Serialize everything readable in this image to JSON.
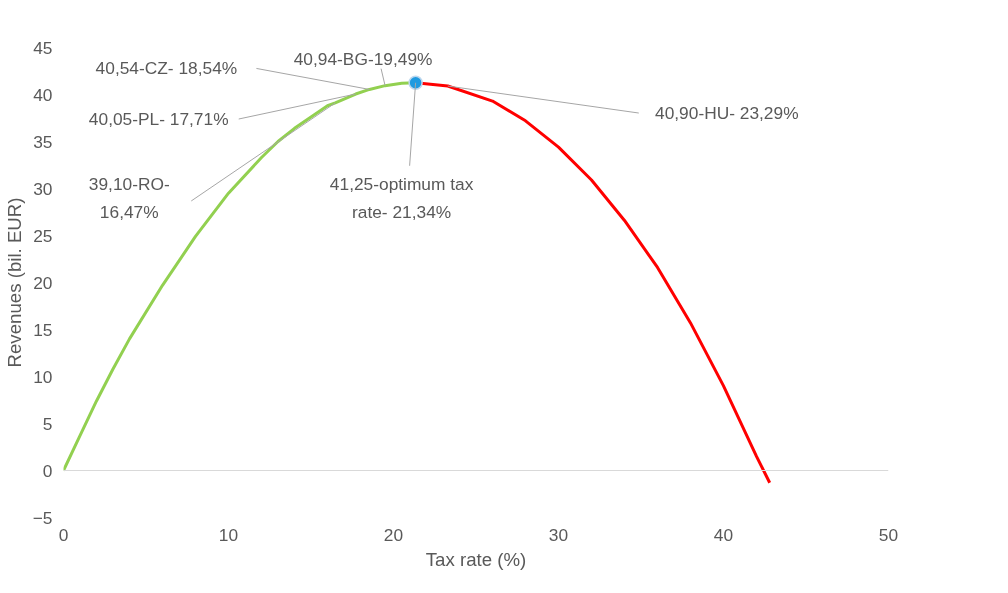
{
  "chart_data": {
    "type": "line",
    "xlabel": "Tax rate (%)",
    "ylabel": "Revenues (bil. EUR)",
    "xlim": [
      0,
      50
    ],
    "ylim": [
      -5,
      45
    ],
    "xticks": [
      0,
      10,
      20,
      30,
      40,
      50
    ],
    "yticks": [
      -5,
      0,
      5,
      10,
      15,
      20,
      25,
      30,
      35,
      40,
      45
    ],
    "grid": false,
    "series": [
      {
        "color": "#92d050",
        "x": [
          0,
          1,
          2,
          3,
          4,
          6,
          8,
          10,
          12,
          13,
          14,
          16,
          16.47,
          17.71,
          18.54,
          19.49,
          20.5,
          21.34
        ],
        "values": [
          0,
          3.7,
          7.4,
          10.8,
          14,
          19.7,
          24.9,
          29.5,
          33.3,
          35,
          36.4,
          38.8,
          39.1,
          40.05,
          40.54,
          40.94,
          41.2,
          41.25
        ]
      },
      {
        "color": "#ff0000",
        "x": [
          21.34,
          23.29,
          26,
          28,
          30,
          32,
          34,
          36,
          38,
          40,
          42,
          42.8
        ],
        "values": [
          41.25,
          40.9,
          39.3,
          37.2,
          34.4,
          30.9,
          26.6,
          21.6,
          15.7,
          9.0,
          1.5,
          -1.3
        ]
      },
      {
        "type": "scatter",
        "color": "#1f9ae0",
        "marker": "circle",
        "x": [
          21.34
        ],
        "values": [
          41.25
        ]
      }
    ],
    "ref_lines": [
      {
        "axis": "y",
        "value": 0,
        "color": "#d9d9d9"
      }
    ],
    "annotations": [
      {
        "text": "39,10-RO-\n16,47%",
        "x": 16.47,
        "y": 39.1
      },
      {
        "text": "40,05-PL- 17,71%",
        "x": 17.71,
        "y": 40.05
      },
      {
        "text": "40,54-CZ- 18,54%",
        "x": 18.54,
        "y": 40.54
      },
      {
        "text": "40,94-BG-19,49%",
        "x": 19.49,
        "y": 40.94
      },
      {
        "text": "41,25-optimum tax\nrate- 21,34%",
        "x": 21.34,
        "y": 41.25
      },
      {
        "text": "40,90-HU- 23,29%",
        "x": 23.29,
        "y": 40.9
      }
    ]
  }
}
